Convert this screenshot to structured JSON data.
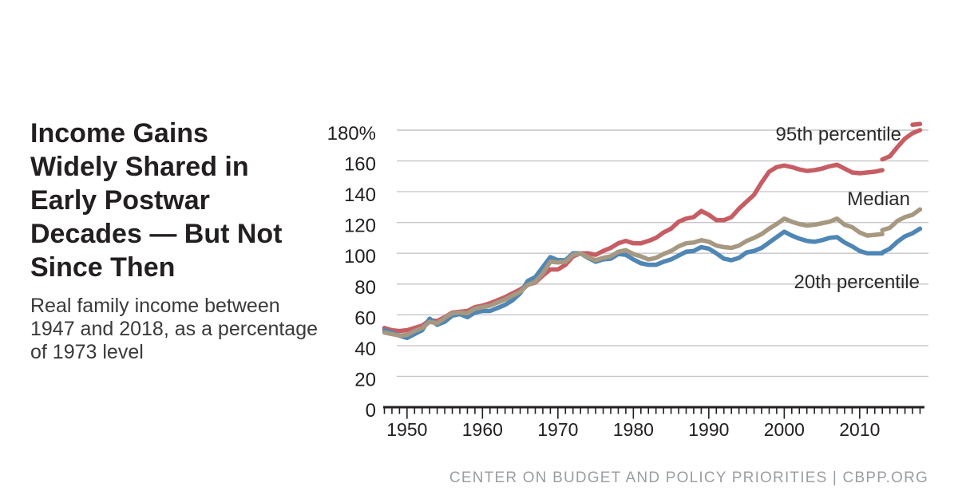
{
  "header": {
    "title_lines": [
      "Income Gains",
      "Widely Shared in",
      "Early Postwar",
      "Decades — But Not",
      "Since Then"
    ],
    "subtitle_lines": [
      "Real family income between",
      "1947 and 2018, as a percentage",
      "of 1973 level"
    ]
  },
  "footer": {
    "attribution": "CENTER ON BUDGET AND POLICY PRIORITIES | CBPP.ORG"
  },
  "colors": {
    "p95_line": "#c75d64",
    "median_line": "#a69881",
    "p20_line": "#4f86b4",
    "gridline": "#c6c6c6",
    "axis": "#231f20",
    "text": "#231f20",
    "footer_text": "#9b9ea1"
  },
  "chart_data": {
    "type": "line",
    "title": "Income Gains Widely Shared in Early Postwar Decades — But Not Since Then",
    "subtitle": "Real family income between 1947 and 2018, as a percentage of 1973 level",
    "x_range": [
      1947,
      2018
    ],
    "ylim": [
      0,
      190
    ],
    "grid": "horizontal",
    "legend_position": "inline-right",
    "yticks": [
      {
        "value": 0,
        "label": "0"
      },
      {
        "value": 20,
        "label": "20"
      },
      {
        "value": 40,
        "label": "40"
      },
      {
        "value": 60,
        "label": "60"
      },
      {
        "value": 80,
        "label": "80"
      },
      {
        "value": 100,
        "label": "100"
      },
      {
        "value": 120,
        "label": "120"
      },
      {
        "value": 140,
        "label": "140"
      },
      {
        "value": 160,
        "label": "160"
      },
      {
        "value": 180,
        "label": "180%"
      }
    ],
    "xticks": [
      {
        "value": 1950,
        "label": "1950"
      },
      {
        "value": 1960,
        "label": "1960"
      },
      {
        "value": 1970,
        "label": "1970"
      },
      {
        "value": 1980,
        "label": "1980"
      },
      {
        "value": 1990,
        "label": "1990"
      },
      {
        "value": 2000,
        "label": "2000"
      },
      {
        "value": 2010,
        "label": "2010"
      }
    ],
    "series": [
      {
        "id": "p95",
        "label": "95th percentile",
        "color": "#c75d64",
        "segments": [
          {
            "start_year": 1947,
            "values": [
              51.5,
              50,
              49.5,
              50,
              51.5,
              53,
              56.5,
              56,
              58.5,
              61.5,
              62,
              62.5,
              65,
              66,
              67.5,
              69.5,
              71.5,
              74,
              76.5,
              79.5,
              81,
              85.5,
              89.5,
              89.5,
              92.5,
              98,
              100,
              100,
              99,
              101.5,
              103.5,
              106.5,
              108,
              106.5,
              106.5,
              108,
              110,
              113.5,
              116,
              120.5,
              122.5,
              123.5,
              127.5,
              125,
              121.5,
              121.5,
              123.5,
              129,
              133.5,
              138,
              146,
              153,
              156,
              157,
              156,
              154.5,
              153.5,
              154,
              155,
              156.5,
              157.5,
              155,
              152.5,
              152,
              152.5,
              153,
              154
            ]
          },
          {
            "start_year": 2013,
            "values": [
              161,
              163,
              169,
              174.5,
              178,
              180
            ]
          },
          {
            "start_year": 2017,
            "values": [
              183.5,
              184
            ]
          }
        ]
      },
      {
        "id": "median",
        "label": "Median",
        "color": "#a69881",
        "segments": [
          {
            "start_year": 1947,
            "values": [
              48.5,
              47.5,
              46.5,
              47,
              49.5,
              51.5,
              55.5,
              54.5,
              58,
              61,
              61.5,
              61,
              64,
              65,
              66,
              68,
              70,
              72.5,
              75,
              79.5,
              81.5,
              87,
              94.5,
              94,
              94.5,
              99,
              100,
              97.5,
              95.5,
              97,
              98,
              101,
              102,
              99.5,
              98,
              96,
              97,
              99.5,
              101.5,
              104.5,
              106.5,
              107,
              108.5,
              107.5,
              105,
              104,
              103.5,
              105,
              108,
              110,
              112.5,
              116,
              119,
              122.5,
              120.5,
              119,
              118,
              118.5,
              119.5,
              120.5,
              122.5,
              118.5,
              117,
              113.5,
              111.5,
              112,
              112.5
            ]
          },
          {
            "start_year": 2013,
            "values": [
              115,
              116.5,
              121,
              123.5,
              125,
              128.5
            ]
          }
        ]
      },
      {
        "id": "p20",
        "label": "20th percentile",
        "color": "#4f86b4",
        "segments": [
          {
            "start_year": 1947,
            "values": [
              50,
              48.5,
              46.5,
              45,
              47.5,
              50,
              57.5,
              53.5,
              55.5,
              59.5,
              60.5,
              58.5,
              61.5,
              62.5,
              62.5,
              64.5,
              66.5,
              69.5,
              74,
              82,
              84.5,
              91,
              97.5,
              95.5,
              95.5,
              100,
              100,
              97,
              94.5,
              96,
              96.5,
              99.5,
              99,
              96,
              93.5,
              92.5,
              92.5,
              94.5,
              96,
              98.5,
              101,
              101.5,
              104,
              103,
              100,
              96.5,
              95.5,
              97,
              100.5,
              101.5,
              103.5,
              107,
              110.5,
              114,
              111.5,
              109.5,
              108,
              107.5,
              108.5,
              110,
              110.5,
              107,
              104.5,
              101.5,
              100,
              100,
              100
            ]
          },
          {
            "start_year": 2013,
            "values": [
              100.5,
              103,
              107.5,
              111,
              113,
              116
            ]
          }
        ]
      }
    ]
  }
}
